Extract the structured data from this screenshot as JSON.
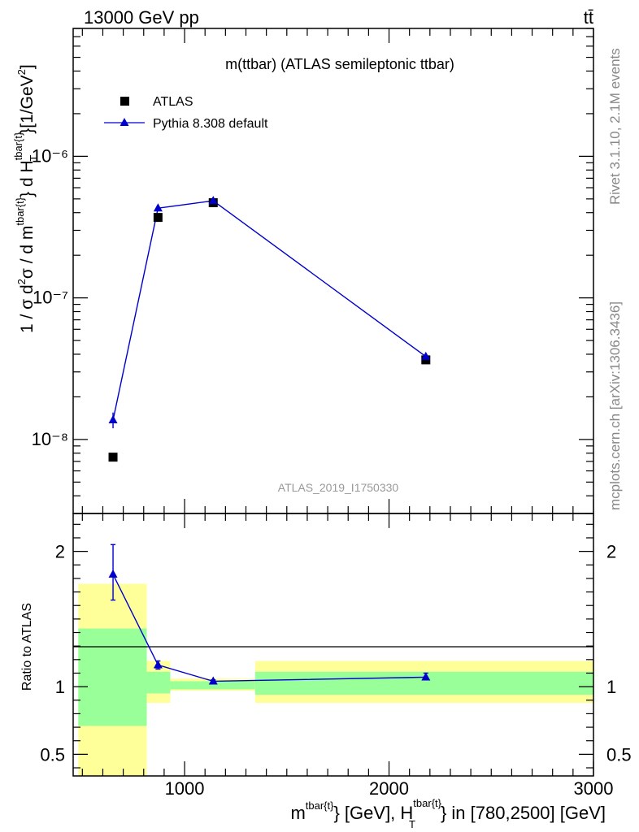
{
  "header": {
    "left": "13000 GeV pp",
    "right": "tt̄"
  },
  "side": {
    "top": "Rivet 3.1.10,  2.1M events",
    "bottom": "mcplots.cern.ch [arXiv:1306.3436]"
  },
  "colors": {
    "data": "#000000",
    "mc": "#0000cc",
    "band_inner": "#99ff99",
    "band_outer": "#ffff99"
  },
  "chart_data": [
    {
      "type": "scatter",
      "title": "m(ttbar) (ATLAS semileptonic ttbar)",
      "watermark": "ATLAS_2019_I1750330",
      "ylabel": "1 / σ d²σ / d m^{tbar{t}} d H_T^{tbar{t}} [1/GeV²]",
      "yscale": "log",
      "ylim": [
        3e-09,
        8e-06
      ],
      "xlim": [
        455,
        3000
      ],
      "yticks": [
        {
          "value": 1e-08,
          "label": "10⁻⁸"
        },
        {
          "value": 1e-07,
          "label": "10⁻⁷"
        },
        {
          "value": 1e-06,
          "label": "10⁻⁶"
        }
      ],
      "legend_position": "top-left",
      "series": [
        {
          "name": "ATLAS",
          "marker": "square",
          "points": [
            {
              "x": 650,
              "y": 7.5e-09
            },
            {
              "x": 870,
              "y": 3.7e-07
            },
            {
              "x": 1140,
              "y": 4.7e-07
            },
            {
              "x": 2180,
              "y": 3.65e-08
            }
          ]
        },
        {
          "name": "Pythia 8.308 default",
          "marker": "triangle",
          "line": true,
          "points": [
            {
              "x": 650,
              "y": 1.37e-08,
              "err_lo": 1.2e-08,
              "err_hi": 1.55e-08
            },
            {
              "x": 870,
              "y": 4.3e-07,
              "err_lo": 4.15e-07,
              "err_hi": 4.45e-07
            },
            {
              "x": 1140,
              "y": 4.85e-07,
              "err_lo": 4.75e-07,
              "err_hi": 4.95e-07
            },
            {
              "x": 2180,
              "y": 3.85e-08,
              "err_lo": 3.75e-08,
              "err_hi": 3.95e-08
            }
          ]
        }
      ]
    },
    {
      "type": "scatter",
      "ylabel": "Ratio to ATLAS",
      "xlabel": "m^{tbar{t}} [GeV], H_T^{tbar{t}} in [780,2500] [GeV]",
      "xlim": [
        455,
        3000
      ],
      "ylim": [
        0.34,
        2.28
      ],
      "xticks": [
        {
          "value": 1000,
          "label": "1000"
        },
        {
          "value": 2000,
          "label": "2000"
        },
        {
          "value": 3000,
          "label": "3000"
        }
      ],
      "yticks": [
        {
          "value": 0.5,
          "label": "0.5"
        },
        {
          "value": 1,
          "label": "1"
        },
        {
          "value": 2,
          "label": "2"
        }
      ],
      "bands": [
        {
          "x0": 480,
          "x1": 815,
          "inner": [
            0.71,
            1.43
          ],
          "outer": [
            0.34,
            1.76
          ]
        },
        {
          "x0": 815,
          "x1": 930,
          "inner": [
            0.95,
            1.11
          ],
          "outer": [
            0.88,
            1.19
          ]
        },
        {
          "x0": 930,
          "x1": 1345,
          "inner": [
            0.98,
            1.04
          ],
          "outer": [
            0.97,
            1.06
          ]
        },
        {
          "x0": 1345,
          "x1": 3000,
          "inner": [
            0.94,
            1.11
          ],
          "outer": [
            0.88,
            1.19
          ]
        }
      ],
      "series": [
        {
          "name": "Pythia 8.308 default",
          "marker": "triangle",
          "line": true,
          "points": [
            {
              "x": 650,
              "y": 1.83,
              "err_lo": 1.64,
              "err_hi": 2.05
            },
            {
              "x": 870,
              "y": 1.16,
              "err_lo": 1.13,
              "err_hi": 1.19
            },
            {
              "x": 1140,
              "y": 1.04,
              "err_lo": 1.03,
              "err_hi": 1.05
            },
            {
              "x": 2180,
              "y": 1.07,
              "err_lo": 1.05,
              "err_hi": 1.1
            }
          ]
        }
      ]
    }
  ]
}
